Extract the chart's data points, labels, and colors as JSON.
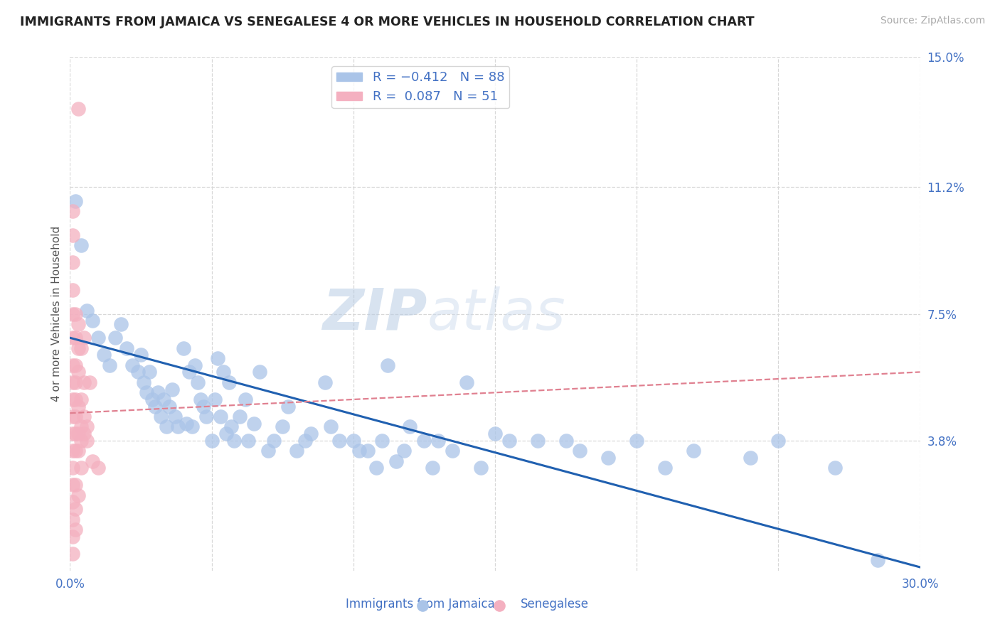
{
  "title": "IMMIGRANTS FROM JAMAICA VS SENEGALESE 4 OR MORE VEHICLES IN HOUSEHOLD CORRELATION CHART",
  "source": "Source: ZipAtlas.com",
  "ylabel": "4 or more Vehicles in Household",
  "x_min": 0.0,
  "x_max": 0.3,
  "y_min": 0.0,
  "y_max": 0.15,
  "x_ticks": [
    0.0,
    0.05,
    0.1,
    0.15,
    0.2,
    0.25,
    0.3
  ],
  "y_tick_labels_right": [
    "15.0%",
    "11.2%",
    "7.5%",
    "3.8%"
  ],
  "y_ticks_right": [
    0.15,
    0.112,
    0.075,
    0.038
  ],
  "jamaica_color": "#aac4e8",
  "senegal_color": "#f4b0c0",
  "jamaica_line_color": "#2060b0",
  "senegal_line_color": "#e08090",
  "watermark_zip": "ZIP",
  "watermark_atlas": "atlas",
  "background_color": "#ffffff",
  "grid_color": "#d8d8d8",
  "jamaica_scatter": [
    [
      0.002,
      0.108
    ],
    [
      0.004,
      0.095
    ],
    [
      0.006,
      0.076
    ],
    [
      0.008,
      0.073
    ],
    [
      0.01,
      0.068
    ],
    [
      0.012,
      0.063
    ],
    [
      0.014,
      0.06
    ],
    [
      0.016,
      0.068
    ],
    [
      0.018,
      0.072
    ],
    [
      0.02,
      0.065
    ],
    [
      0.022,
      0.06
    ],
    [
      0.024,
      0.058
    ],
    [
      0.025,
      0.063
    ],
    [
      0.026,
      0.055
    ],
    [
      0.027,
      0.052
    ],
    [
      0.028,
      0.058
    ],
    [
      0.029,
      0.05
    ],
    [
      0.03,
      0.048
    ],
    [
      0.031,
      0.052
    ],
    [
      0.032,
      0.045
    ],
    [
      0.033,
      0.05
    ],
    [
      0.034,
      0.042
    ],
    [
      0.035,
      0.048
    ],
    [
      0.036,
      0.053
    ],
    [
      0.037,
      0.045
    ],
    [
      0.038,
      0.042
    ],
    [
      0.04,
      0.065
    ],
    [
      0.041,
      0.043
    ],
    [
      0.042,
      0.058
    ],
    [
      0.043,
      0.042
    ],
    [
      0.044,
      0.06
    ],
    [
      0.045,
      0.055
    ],
    [
      0.046,
      0.05
    ],
    [
      0.047,
      0.048
    ],
    [
      0.048,
      0.045
    ],
    [
      0.05,
      0.038
    ],
    [
      0.051,
      0.05
    ],
    [
      0.052,
      0.062
    ],
    [
      0.053,
      0.045
    ],
    [
      0.054,
      0.058
    ],
    [
      0.055,
      0.04
    ],
    [
      0.056,
      0.055
    ],
    [
      0.057,
      0.042
    ],
    [
      0.058,
      0.038
    ],
    [
      0.06,
      0.045
    ],
    [
      0.062,
      0.05
    ],
    [
      0.063,
      0.038
    ],
    [
      0.065,
      0.043
    ],
    [
      0.067,
      0.058
    ],
    [
      0.07,
      0.035
    ],
    [
      0.072,
      0.038
    ],
    [
      0.075,
      0.042
    ],
    [
      0.077,
      0.048
    ],
    [
      0.08,
      0.035
    ],
    [
      0.083,
      0.038
    ],
    [
      0.085,
      0.04
    ],
    [
      0.09,
      0.055
    ],
    [
      0.092,
      0.042
    ],
    [
      0.095,
      0.038
    ],
    [
      0.1,
      0.038
    ],
    [
      0.102,
      0.035
    ],
    [
      0.105,
      0.035
    ],
    [
      0.108,
      0.03
    ],
    [
      0.11,
      0.038
    ],
    [
      0.112,
      0.06
    ],
    [
      0.115,
      0.032
    ],
    [
      0.118,
      0.035
    ],
    [
      0.12,
      0.042
    ],
    [
      0.125,
      0.038
    ],
    [
      0.128,
      0.03
    ],
    [
      0.13,
      0.038
    ],
    [
      0.135,
      0.035
    ],
    [
      0.14,
      0.055
    ],
    [
      0.145,
      0.03
    ],
    [
      0.15,
      0.04
    ],
    [
      0.155,
      0.038
    ],
    [
      0.165,
      0.038
    ],
    [
      0.175,
      0.038
    ],
    [
      0.18,
      0.035
    ],
    [
      0.19,
      0.033
    ],
    [
      0.2,
      0.038
    ],
    [
      0.21,
      0.03
    ],
    [
      0.22,
      0.035
    ],
    [
      0.24,
      0.033
    ],
    [
      0.25,
      0.038
    ],
    [
      0.27,
      0.03
    ],
    [
      0.285,
      0.003
    ]
  ],
  "senegal_scatter": [
    [
      0.001,
      0.105
    ],
    [
      0.001,
      0.098
    ],
    [
      0.001,
      0.09
    ],
    [
      0.001,
      0.082
    ],
    [
      0.001,
      0.075
    ],
    [
      0.001,
      0.068
    ],
    [
      0.001,
      0.06
    ],
    [
      0.001,
      0.055
    ],
    [
      0.001,
      0.05
    ],
    [
      0.001,
      0.045
    ],
    [
      0.001,
      0.04
    ],
    [
      0.001,
      0.035
    ],
    [
      0.001,
      0.03
    ],
    [
      0.001,
      0.025
    ],
    [
      0.001,
      0.02
    ],
    [
      0.001,
      0.015
    ],
    [
      0.001,
      0.01
    ],
    [
      0.001,
      0.005
    ],
    [
      0.002,
      0.075
    ],
    [
      0.002,
      0.068
    ],
    [
      0.002,
      0.06
    ],
    [
      0.002,
      0.055
    ],
    [
      0.002,
      0.05
    ],
    [
      0.002,
      0.045
    ],
    [
      0.002,
      0.04
    ],
    [
      0.002,
      0.035
    ],
    [
      0.002,
      0.025
    ],
    [
      0.002,
      0.018
    ],
    [
      0.002,
      0.012
    ],
    [
      0.003,
      0.135
    ],
    [
      0.003,
      0.072
    ],
    [
      0.003,
      0.065
    ],
    [
      0.003,
      0.058
    ],
    [
      0.003,
      0.048
    ],
    [
      0.003,
      0.04
    ],
    [
      0.003,
      0.035
    ],
    [
      0.003,
      0.022
    ],
    [
      0.004,
      0.065
    ],
    [
      0.004,
      0.05
    ],
    [
      0.004,
      0.042
    ],
    [
      0.004,
      0.038
    ],
    [
      0.004,
      0.03
    ],
    [
      0.005,
      0.068
    ],
    [
      0.005,
      0.055
    ],
    [
      0.005,
      0.045
    ],
    [
      0.005,
      0.04
    ],
    [
      0.006,
      0.042
    ],
    [
      0.006,
      0.038
    ],
    [
      0.007,
      0.055
    ],
    [
      0.008,
      0.032
    ],
    [
      0.01,
      0.03
    ]
  ],
  "jamaica_trend_x": [
    0.0,
    0.3
  ],
  "jamaica_trend_y": [
    0.068,
    0.001
  ],
  "senegal_trend_x": [
    0.0,
    0.3
  ],
  "senegal_trend_y": [
    0.046,
    0.058
  ]
}
